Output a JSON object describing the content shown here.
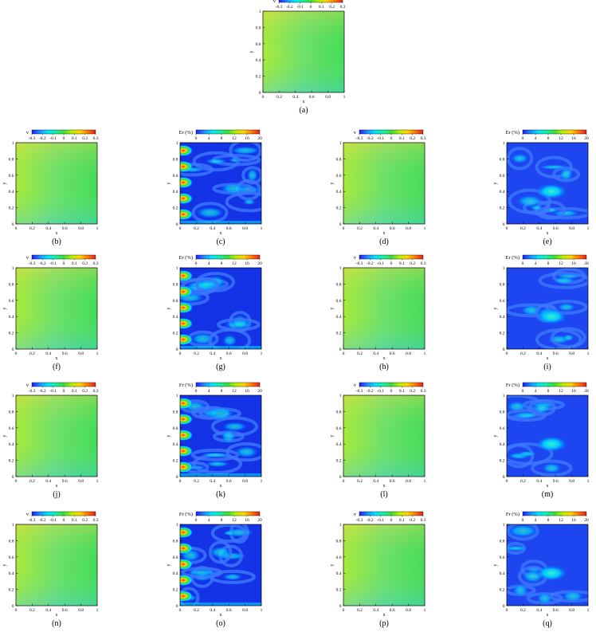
{
  "colors": {
    "jet": [
      "#1e1eff",
      "#1e8cff",
      "#00e6ff",
      "#14f0a0",
      "#3cdc3c",
      "#b4f000",
      "#ffd700",
      "#ff7800",
      "#e61e1e"
    ]
  },
  "common": {
    "x_ticks": [
      "0",
      "0.2",
      "0.4",
      "0.6",
      "0.8",
      "1"
    ],
    "y_ticks": [
      "0",
      "0.2",
      "0.4",
      "0.6",
      "0.8",
      "1"
    ],
    "xlabel": "x",
    "ylabel": "y"
  },
  "colorbars": {
    "v": {
      "label": "v",
      "ticks": [
        "-0.3",
        "-0.2",
        "-0.1",
        "0",
        "0.1",
        "0.2",
        "0.3"
      ],
      "range": [
        -0.3,
        0.3
      ]
    },
    "er": {
      "label": "Er (%)",
      "ticks": [
        "0",
        "4",
        "8",
        "12",
        "16",
        "20"
      ],
      "range": [
        0,
        20
      ]
    },
    "fr": {
      "label": "Fr (%)",
      "ticks": [
        "0",
        "4",
        "8",
        "12",
        "16",
        "20"
      ],
      "range": [
        0,
        20
      ]
    }
  },
  "chart_data": [
    {
      "id": "a",
      "type": "heatmap",
      "caption": "(a)",
      "colorbar": "v",
      "field": "velocity"
    },
    {
      "id": "b",
      "type": "heatmap",
      "caption": "(b)",
      "colorbar": "v",
      "field": "velocity"
    },
    {
      "id": "c",
      "type": "heatmap",
      "caption": "(c)",
      "colorbar": "er",
      "field": "error",
      "error_level": "high"
    },
    {
      "id": "d",
      "type": "heatmap",
      "caption": "(d)",
      "colorbar": "v",
      "field": "velocity"
    },
    {
      "id": "e",
      "type": "heatmap",
      "caption": "(e)",
      "colorbar": "er",
      "field": "error",
      "error_level": "low"
    },
    {
      "id": "f",
      "type": "heatmap",
      "caption": "(f)",
      "colorbar": "v",
      "field": "velocity"
    },
    {
      "id": "g",
      "type": "heatmap",
      "caption": "(g)",
      "colorbar": "er",
      "field": "error",
      "error_level": "high"
    },
    {
      "id": "h",
      "type": "heatmap",
      "caption": "(h)",
      "colorbar": "v",
      "field": "velocity"
    },
    {
      "id": "i",
      "type": "heatmap",
      "caption": "(i)",
      "colorbar": "er",
      "field": "error",
      "error_level": "low"
    },
    {
      "id": "j",
      "type": "heatmap",
      "caption": "(j)",
      "colorbar": "v",
      "field": "velocity"
    },
    {
      "id": "k",
      "type": "heatmap",
      "caption": "(k)",
      "colorbar": "fr",
      "field": "error",
      "error_level": "high"
    },
    {
      "id": "l",
      "type": "heatmap",
      "caption": "(l)",
      "colorbar": "v",
      "field": "velocity"
    },
    {
      "id": "m",
      "type": "heatmap",
      "caption": "(m)",
      "colorbar": "fr",
      "field": "error",
      "error_level": "low"
    },
    {
      "id": "n",
      "type": "heatmap",
      "caption": "(n)",
      "colorbar": "v",
      "field": "velocity"
    },
    {
      "id": "o",
      "type": "heatmap",
      "caption": "(o)",
      "colorbar": "fr",
      "field": "error",
      "error_level": "high"
    },
    {
      "id": "p",
      "type": "heatmap",
      "caption": "(p)",
      "colorbar": "v",
      "field": "velocity"
    },
    {
      "id": "q",
      "type": "heatmap",
      "caption": "(q)",
      "colorbar": "fr",
      "field": "error",
      "error_level": "low"
    }
  ]
}
